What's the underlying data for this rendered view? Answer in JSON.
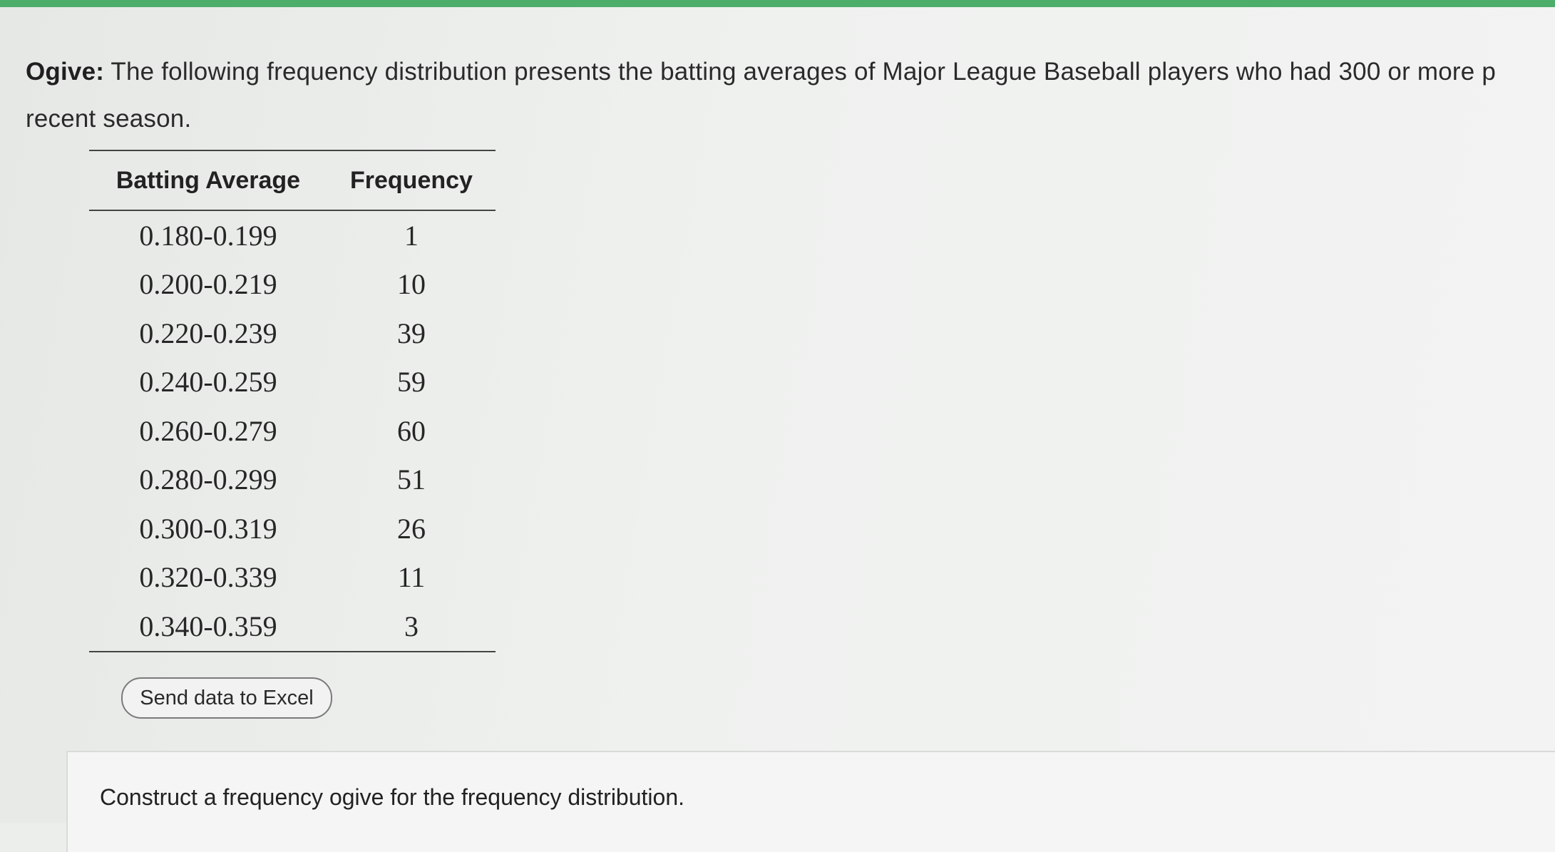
{
  "question": {
    "lead": "Ogive:",
    "line1": "The following frequency distribution presents the batting averages of Major League Baseball players who had 300 or more p",
    "line2": "recent season."
  },
  "table": {
    "headers": [
      "Batting Average",
      "Frequency"
    ],
    "rows": [
      {
        "range": "0.180-0.199",
        "frequency": "1"
      },
      {
        "range": "0.200-0.219",
        "frequency": "10"
      },
      {
        "range": "0.220-0.239",
        "frequency": "39"
      },
      {
        "range": "0.240-0.259",
        "frequency": "59"
      },
      {
        "range": "0.260-0.279",
        "frequency": "60"
      },
      {
        "range": "0.280-0.299",
        "frequency": "51"
      },
      {
        "range": "0.300-0.319",
        "frequency": "26"
      },
      {
        "range": "0.320-0.339",
        "frequency": "11"
      },
      {
        "range": "0.340-0.359",
        "frequency": "3"
      }
    ]
  },
  "excel_button": {
    "label": "Send data to Excel"
  },
  "instruction": "Construct a frequency ogive for the frequency distribution."
}
